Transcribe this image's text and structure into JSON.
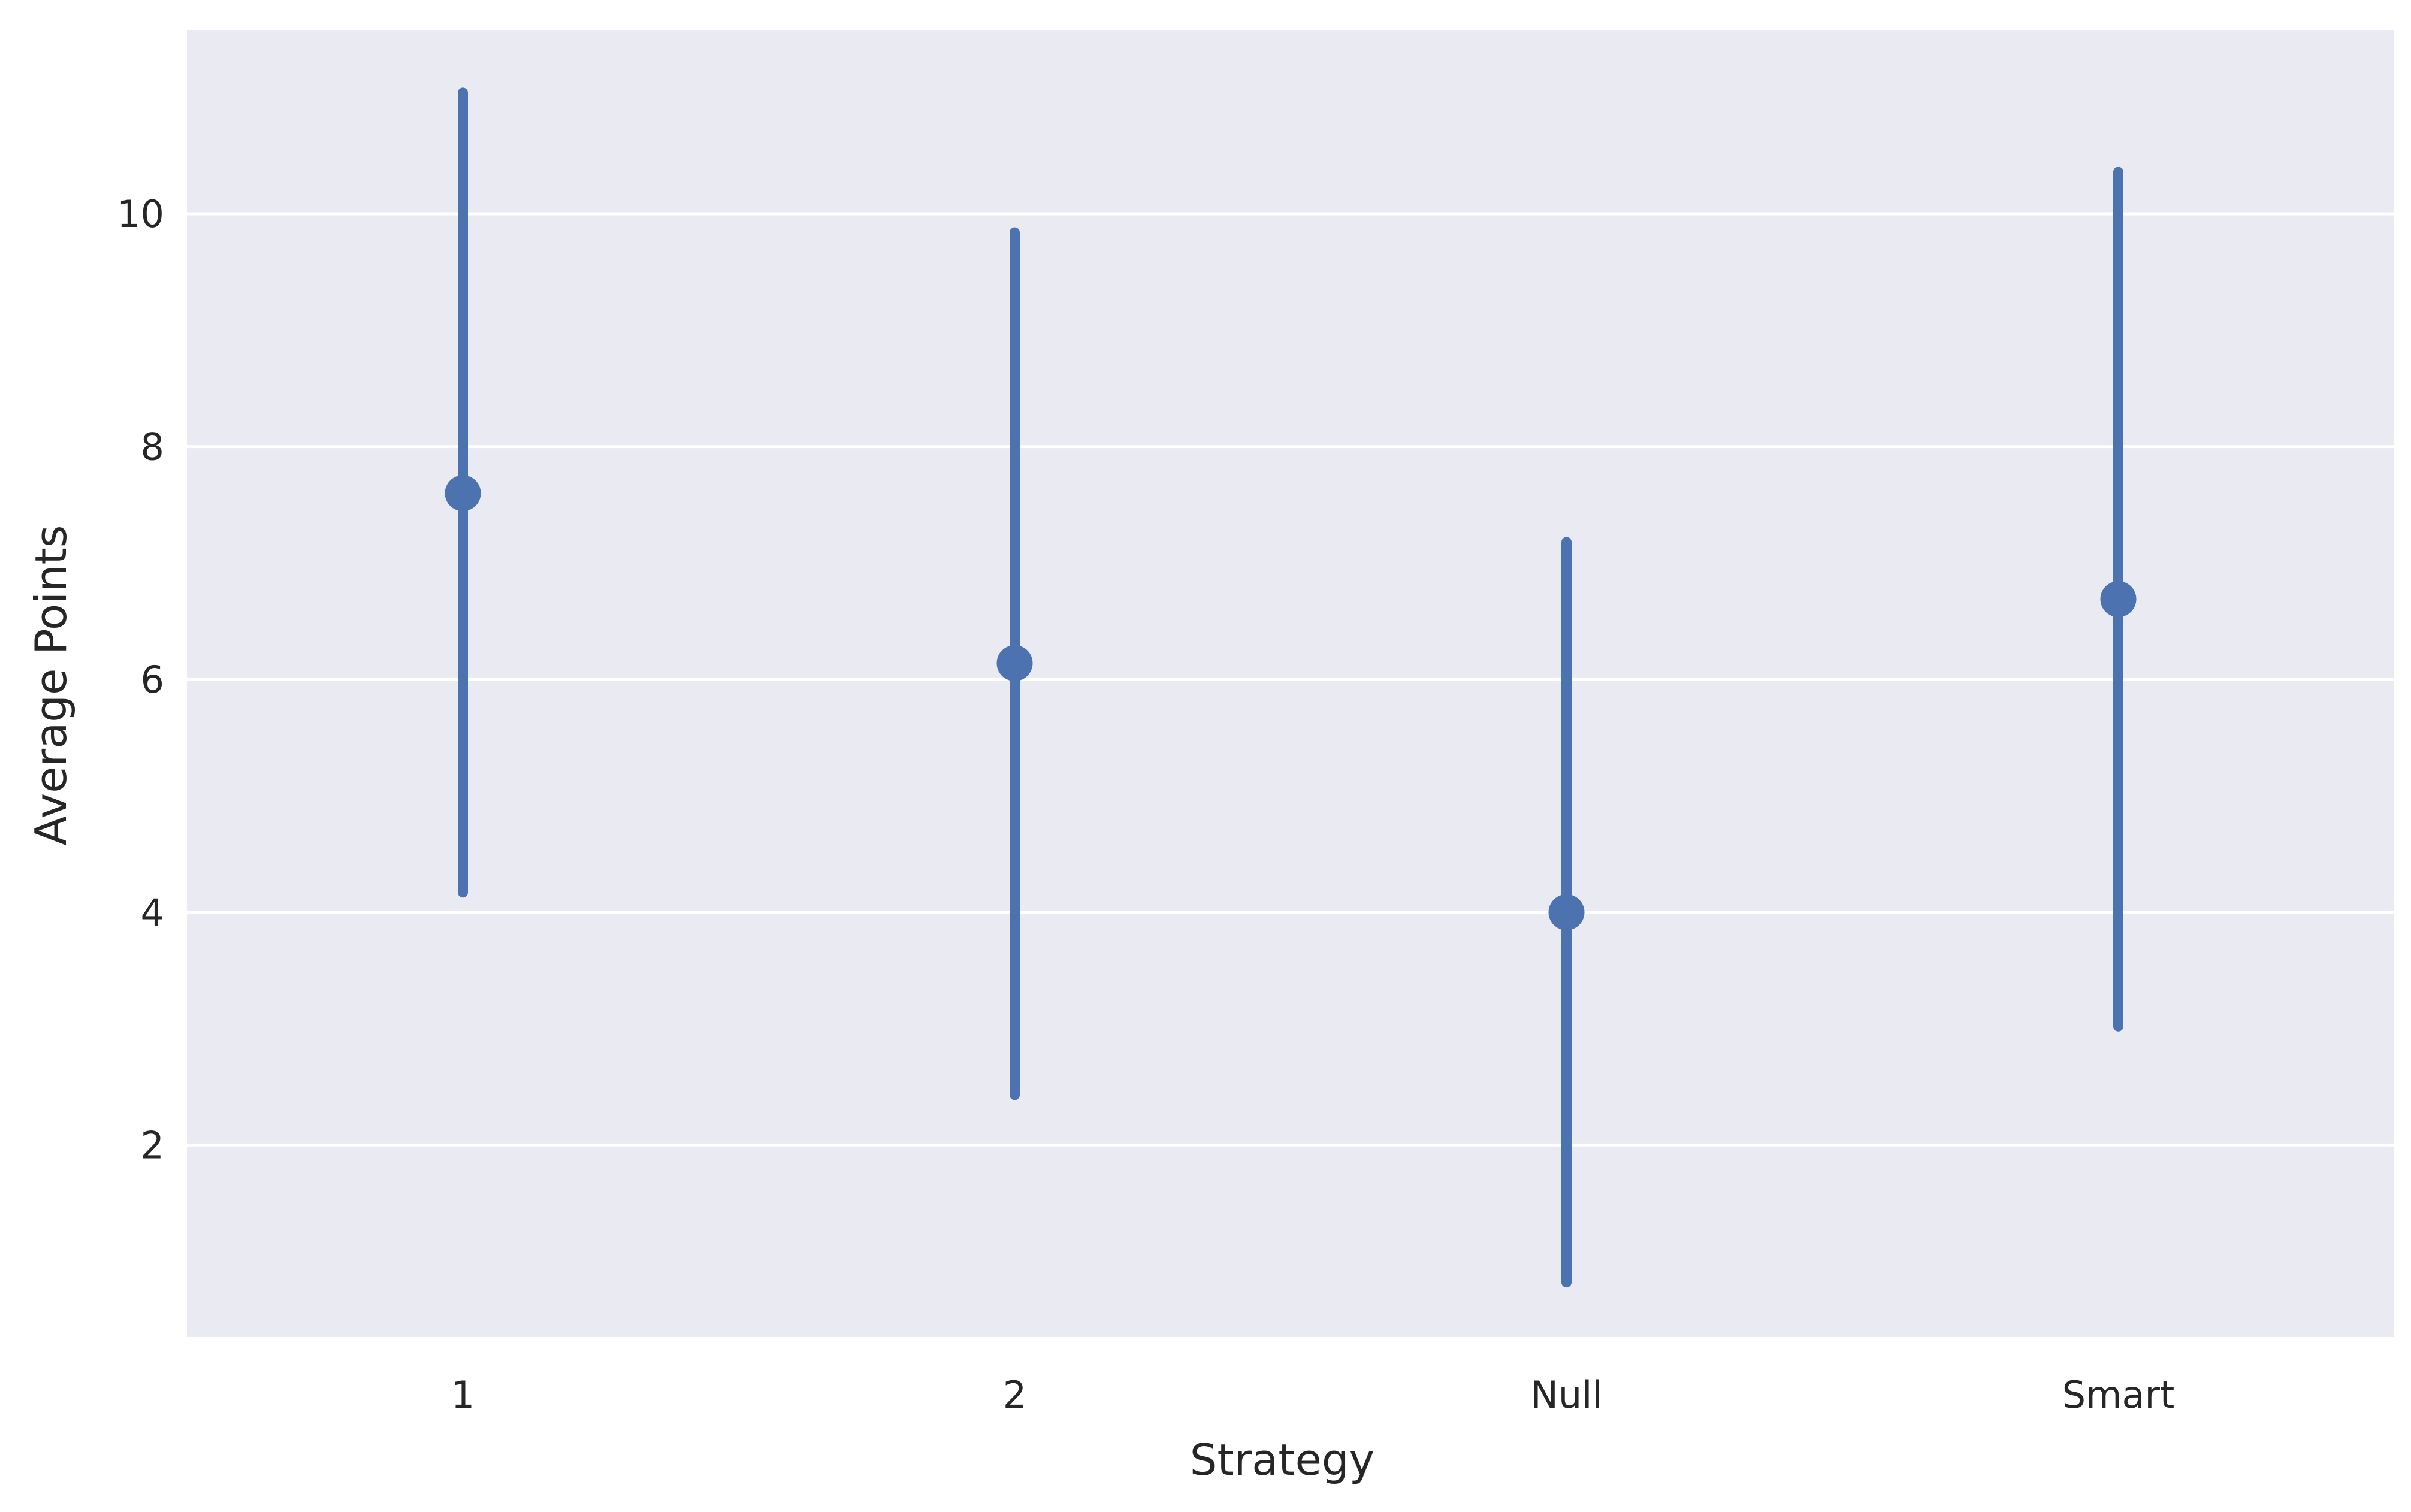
{
  "chart_data": {
    "type": "pointplot",
    "xlabel": "Strategy",
    "ylabel": "Average Points",
    "categories": [
      "1",
      "2",
      "Null",
      "Smart"
    ],
    "series": [
      {
        "values": [
          7.6,
          6.14,
          4.0,
          6.69
        ],
        "ci_low": [
          4.17,
          2.43,
          0.82,
          3.02
        ],
        "ci_high": [
          11.04,
          9.84,
          7.18,
          10.36
        ]
      }
    ],
    "ylim": [
      0.35,
      11.58
    ],
    "yticks": [
      2,
      4,
      6,
      8,
      10
    ],
    "grid": true,
    "colors": {
      "point": "#4c72b0",
      "plot_background": "#eaeaf2",
      "gridline": "#ffffff"
    }
  }
}
